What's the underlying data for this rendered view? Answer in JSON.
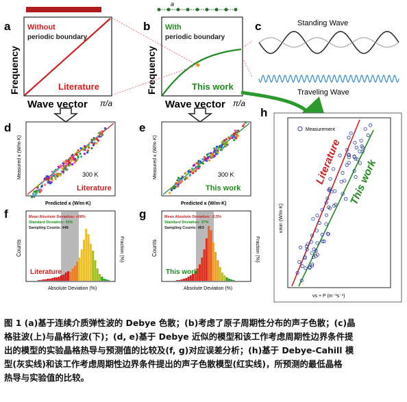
{
  "panels": {
    "a": {
      "letter": "a",
      "tag1": "Without",
      "tag2": "periodic boundary",
      "curve_label": "Literature",
      "xlabel": "Wave vector",
      "xmax": "π/a",
      "ylabel": "Frequency"
    },
    "b": {
      "letter": "b",
      "tag1": "With",
      "tag2": "periodic boundary",
      "curve_label": "This work",
      "xlabel": "Wave vector",
      "xmax": "π/a",
      "ylabel": "Frequency",
      "lattice_label": "a"
    },
    "c": {
      "letter": "c",
      "top_label": "Standing Wave",
      "bottom_label": "Traveling Wave"
    },
    "d": {
      "letter": "d",
      "ylabel": "Measured κ (W/m·K)",
      "xlabel": "Predicted κ (W/m·K)",
      "temp": "300 K",
      "name": "Literature"
    },
    "e": {
      "letter": "e",
      "ylabel": "Measured κ (W/m·K)",
      "xlabel": "Predicted κ (W/m·K)",
      "temp": "300 K",
      "name": "This work"
    },
    "f": {
      "letter": "f",
      "mad": "Mean Absolute Deviation: +58%",
      "sd": "Standard Deviation: 43%",
      "count": "Sampling Counts: 448",
      "name": "Literature",
      "ylabel": "Counts",
      "y2label": "Fraction (%)",
      "xlabel": "Absolute Deviation (%)"
    },
    "g": {
      "letter": "g",
      "mad": "Mean Absolute Deviation: -2.5%",
      "sd": "Standard Deviation: 37%",
      "count": "Sampling Counts: 463",
      "name": "This work",
      "ylabel": "Counts",
      "y2label": "Fraction (%)",
      "xlabel": "Absolute Deviation (%)"
    },
    "h": {
      "letter": "h",
      "legend": "Measurement",
      "line1": "Literature",
      "line2": "This work",
      "ylabel": "κmin (W/m·K)",
      "xlabel": "vs + P (m⁻¹s⁻¹)"
    }
  },
  "colors": {
    "literature": "#cc1f1f",
    "thiswork": "#1f8a1f",
    "standing": "#222222",
    "traveling": "#3a8fd0",
    "dots": "#2b3aa0",
    "grey": "#b9b9b9"
  },
  "caption": {
    "line1": "图 1 (a)基于连续介质弹性波的 Debye 色散；(b)考虑了原子周期性分布的声子色散；(c)晶",
    "line2": "格驻波(上)与晶格行波(下)；(d, e)基于 Debye 近似的模型和该工作考虑周期性边界条件提",
    "line3": "出的模型的实验晶格热导与预测值的比较及(f, g)对应误差分析；(h)基于 Debye-Cahill 模",
    "line4": "型(灰实线)和该工作考虑周期性边界条件提出的声子色散模型(红实线)，所预测的最低晶格",
    "line5": "热导与实验值的比较。"
  }
}
